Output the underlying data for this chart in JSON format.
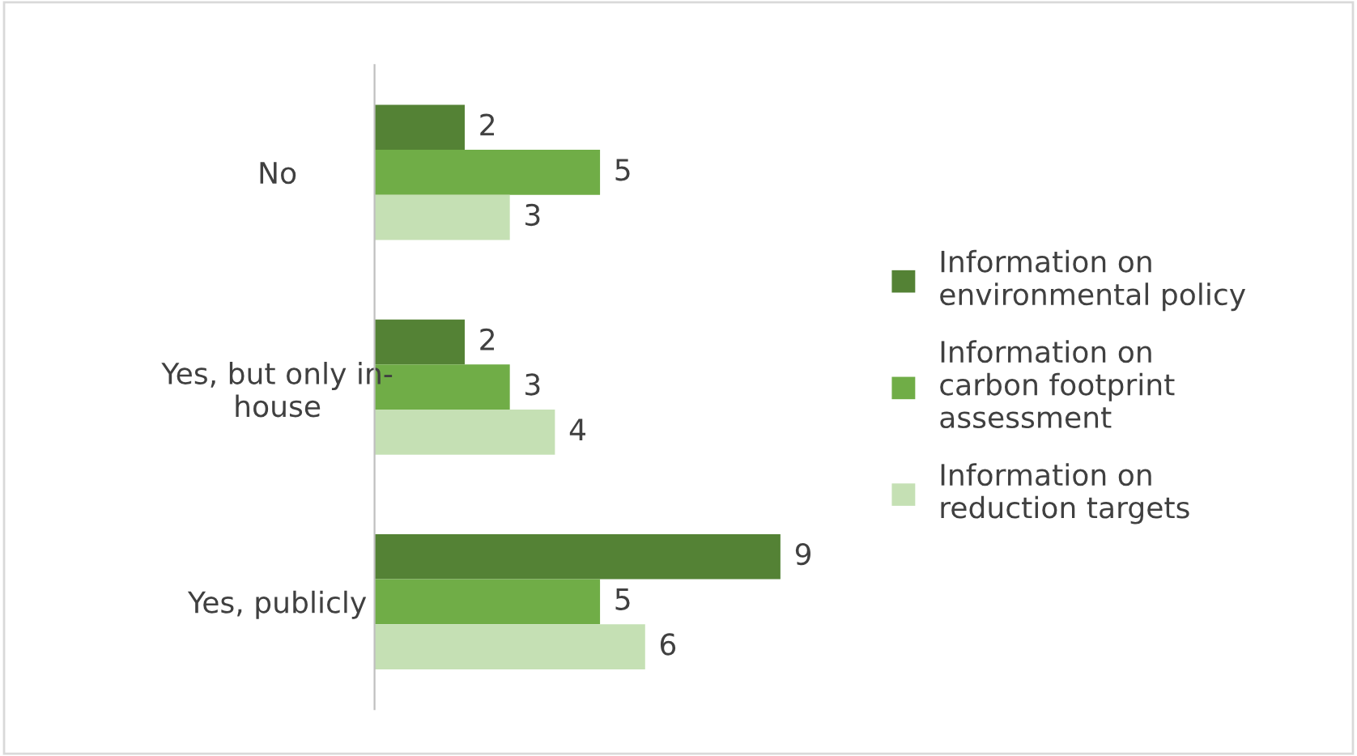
{
  "chart_data": {
    "type": "bar",
    "orientation": "horizontal",
    "categories": [
      "No",
      "Yes, but only in-\nhouse",
      "Yes, publicly"
    ],
    "series": [
      {
        "name": "Information on\nenvironmental policy",
        "color": "#548235",
        "values": [
          2,
          2,
          9
        ]
      },
      {
        "name": "Information on\ncarbon footprint\nassessment",
        "color": "#70ad47",
        "values": [
          5,
          3,
          5
        ]
      },
      {
        "name": "Information on\nreduction targets",
        "color": "#c5e0b4",
        "values": [
          3,
          4,
          6
        ]
      }
    ],
    "data_labels": true,
    "tick_labels": "y",
    "grid": false,
    "legend": "right"
  }
}
